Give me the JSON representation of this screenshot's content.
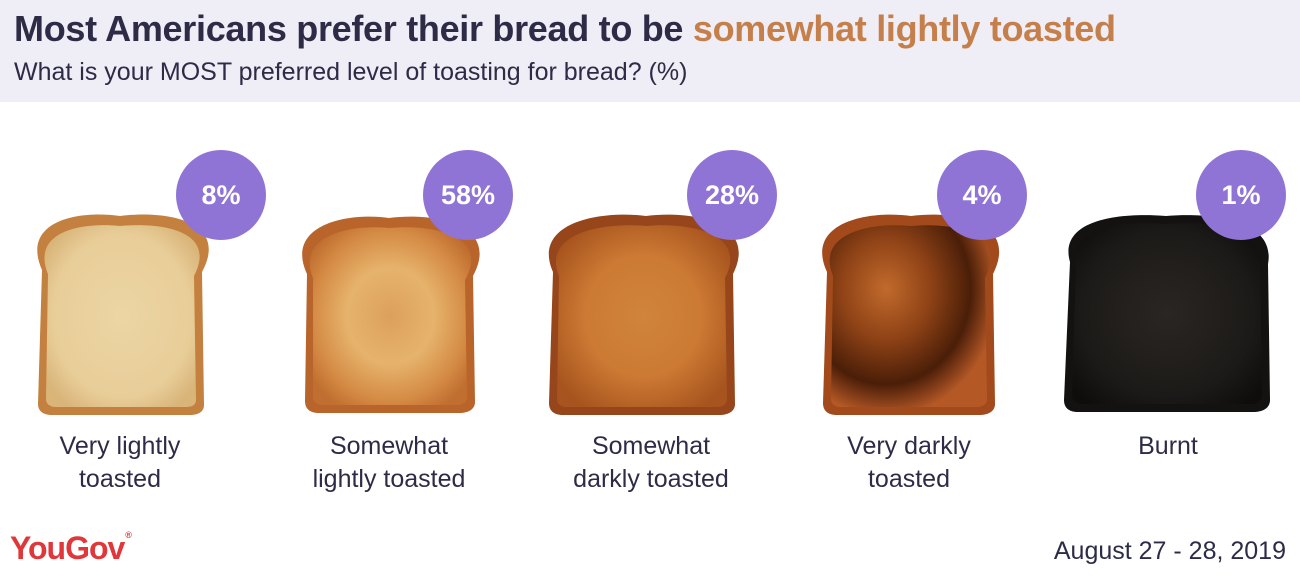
{
  "header": {
    "title_main": "Most Americans prefer their bread to be ",
    "title_accent": "somewhat lightly toasted",
    "subtitle": "What is your MOST preferred level of toasting for bread? (%)"
  },
  "colors": {
    "badge": "#8f74d6",
    "accent": "#c57f4a",
    "text": "#2e2b47",
    "header_bg": "#efedf5"
  },
  "chart_data": {
    "type": "bar",
    "title": "Most Americans prefer their bread to be somewhat lightly toasted",
    "subtitle": "What is your MOST preferred level of toasting for bread? (%)",
    "categories": [
      "Very lightly toasted",
      "Somewhat lightly toasted",
      "Somewhat darkly toasted",
      "Very darkly toasted",
      "Burnt"
    ],
    "values": [
      8,
      58,
      28,
      4,
      1
    ],
    "value_labels": [
      "8%",
      "58%",
      "28%",
      "4%",
      "1%"
    ],
    "unit": "%"
  },
  "items": [
    {
      "line1": "Very lightly",
      "line2": "toasted",
      "pct": "8%"
    },
    {
      "line1": "Somewhat",
      "line2": "lightly toasted",
      "pct": "58%"
    },
    {
      "line1": "Somewhat",
      "line2": "darkly toasted",
      "pct": "28%"
    },
    {
      "line1": "Very darkly",
      "line2": "toasted",
      "pct": "4%"
    },
    {
      "line1": "Burnt",
      "line2": "",
      "pct": "1%"
    }
  ],
  "footer": {
    "logo": "YouGov",
    "date": "August 27 - 28, 2019"
  }
}
